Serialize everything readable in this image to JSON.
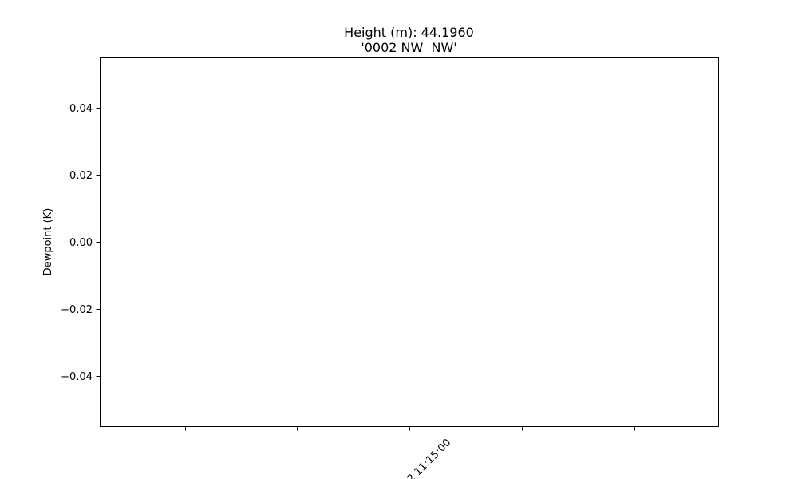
{
  "chart_data": {
    "type": "line",
    "title": [
      "Height (m): 44.1960",
      "'0002 NW  NW'"
    ],
    "xlabel": "",
    "ylabel": "Dewpoint (K)",
    "ylim": [
      -0.055,
      0.055
    ],
    "y_ticks": [
      -0.04,
      -0.02,
      0.0,
      0.02,
      0.04
    ],
    "y_tick_labels": [
      "−0.04",
      "−0.02",
      "0.00",
      "0.02",
      "0.04"
    ],
    "x_ticks": [
      {
        "label": ""
      },
      {
        "label": ""
      },
      {
        "label": "2 11:15:00"
      },
      {
        "label": ""
      },
      {
        "label": ""
      }
    ],
    "x_tick_label_rotation": 45,
    "series": [],
    "grid": false,
    "legend": "none"
  }
}
